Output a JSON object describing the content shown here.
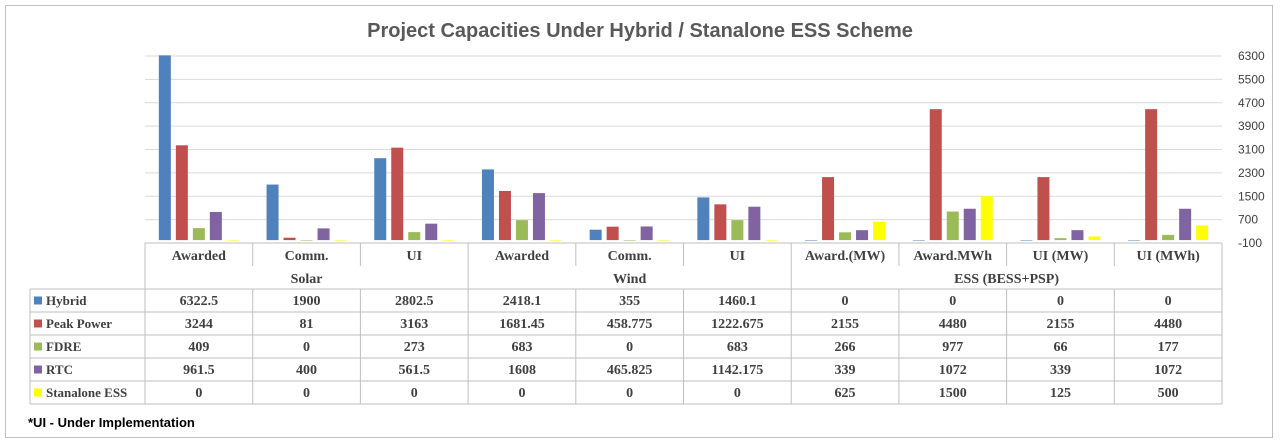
{
  "chart_data": {
    "type": "bar",
    "title": "Project Capacities Under Hybrid / Stanalone ESS Scheme",
    "categories": [
      "Awarded",
      "Comm.",
      "UI",
      "Awarded",
      "Comm.",
      "UI",
      "Award.(MW)",
      "Award.MWh",
      "UI (MW)",
      "UI (MWh)"
    ],
    "groups": [
      {
        "label": "Solar",
        "span": 3
      },
      {
        "label": "Wind",
        "span": 3
      },
      {
        "label": "ESS (BESS+PSP)",
        "span": 4
      }
    ],
    "series": [
      {
        "name": "Hybrid",
        "color": "#4f81bd",
        "values": [
          6322.5,
          1900,
          2802.5,
          2418.1,
          355,
          1460.1,
          0,
          0,
          0,
          0
        ],
        "labels": [
          "6322.5",
          "1900",
          "2802.5",
          "2418.1",
          "355",
          "1460.1",
          "0",
          "0",
          "0",
          "0"
        ]
      },
      {
        "name": "Peak Power",
        "color": "#c0504d",
        "values": [
          3244,
          81,
          3163,
          1681.45,
          458.775,
          1222.675,
          2155,
          4480,
          2155,
          4480
        ],
        "labels": [
          "3244",
          "81",
          "3163",
          "1681.45",
          "458.775",
          "1222.675",
          "2155",
          "4480",
          "2155",
          "4480"
        ]
      },
      {
        "name": "FDRE",
        "color": "#9bbb59",
        "values": [
          409,
          0,
          273,
          683,
          0,
          683,
          266,
          977,
          66,
          177
        ],
        "labels": [
          "409",
          "0",
          "273",
          "683",
          "0",
          "683",
          "266",
          "977",
          "66",
          "177"
        ]
      },
      {
        "name": "RTC",
        "color": "#8064a2",
        "values": [
          961.5,
          400,
          561.5,
          1608,
          465.825,
          1142.175,
          339,
          1072,
          339,
          1072
        ],
        "labels": [
          "961.5",
          "400",
          "561.5",
          "1608",
          "465.825",
          "1142.175",
          "339",
          "1072",
          "339",
          "1072"
        ]
      },
      {
        "name": "Stanalone ESS",
        "color": "#ffff00",
        "values": [
          0,
          0,
          0,
          0,
          0,
          0,
          625,
          1500,
          125,
          500
        ],
        "labels": [
          "0",
          "0",
          "0",
          "0",
          "0",
          "0",
          "625",
          "1500",
          "125",
          "500"
        ]
      }
    ],
    "yaxis": {
      "position": "right",
      "ylim": [
        -100,
        6300
      ],
      "ticks": [
        -100,
        700,
        1500,
        2300,
        3100,
        3900,
        4700,
        5500,
        6300
      ],
      "tick_labels": [
        "-100",
        "700",
        "1500",
        "2300",
        "3100",
        "3900",
        "4700",
        "5500",
        "6300"
      ]
    },
    "grid": true,
    "legend": "data-table"
  },
  "footnote": "*UI - Under Implementation"
}
